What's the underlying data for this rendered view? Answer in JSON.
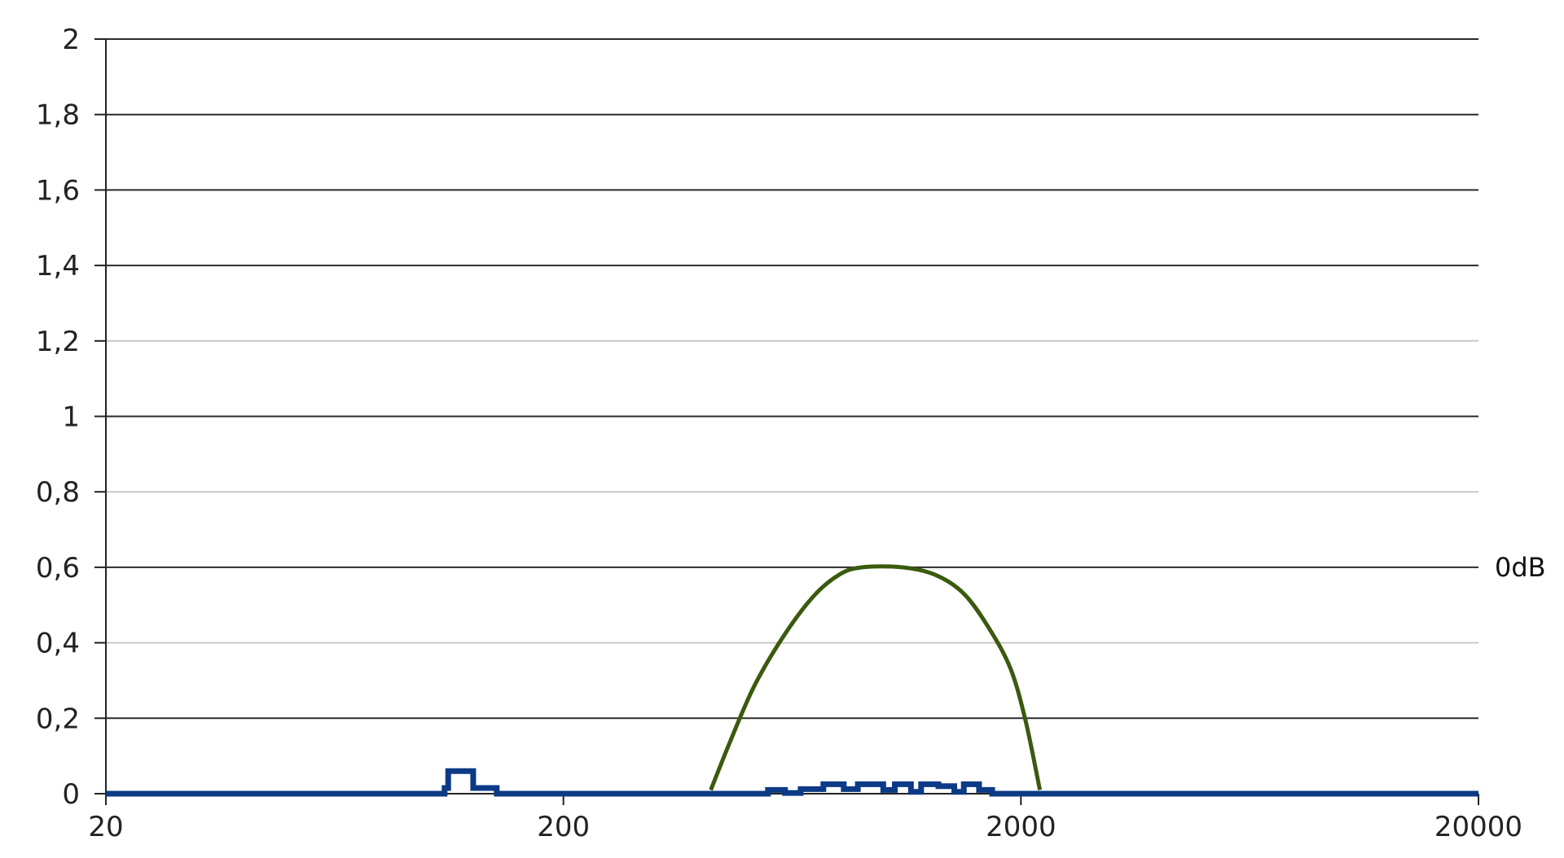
{
  "chart_data": {
    "type": "line",
    "title": "",
    "xlabel": "",
    "ylabel": "",
    "x_scale": "log",
    "xlim": [
      20,
      20000
    ],
    "ylim": [
      0,
      2
    ],
    "grid": true,
    "x_ticks": [
      {
        "value": 20,
        "label": "20"
      },
      {
        "value": 200,
        "label": "200"
      },
      {
        "value": 2000,
        "label": "2000"
      },
      {
        "value": 20000,
        "label": "20000"
      }
    ],
    "y_ticks": [
      {
        "value": 0,
        "label": "0"
      },
      {
        "value": 0.2,
        "label": "0,2"
      },
      {
        "value": 0.4,
        "label": "0,4"
      },
      {
        "value": 0.6,
        "label": "0,6"
      },
      {
        "value": 0.8,
        "label": "0,8"
      },
      {
        "value": 1,
        "label": "1"
      },
      {
        "value": 1.2,
        "label": "1,2"
      },
      {
        "value": 1.4,
        "label": "1,4"
      },
      {
        "value": 1.6,
        "label": "1,6"
      },
      {
        "value": 1.8,
        "label": "1,8"
      },
      {
        "value": 2,
        "label": "2"
      }
    ],
    "minor_gridlines": [
      0.4,
      0.8,
      1.2
    ],
    "reference_label": {
      "y": 0.6,
      "text": "0dB"
    },
    "series": [
      {
        "color": "#0c3a86",
        "step": true,
        "points": [
          [
            20,
            0
          ],
          [
            106,
            0
          ],
          [
            110,
            0.015
          ],
          [
            112,
            0.06
          ],
          [
            125,
            0.06
          ],
          [
            127,
            0.015
          ],
          [
            140,
            0.015
          ],
          [
            143,
            0
          ],
          [
            520,
            0
          ],
          [
            560,
            0.01
          ],
          [
            600,
            0.01
          ],
          [
            610,
            0.002
          ],
          [
            640,
            0.002
          ],
          [
            660,
            0.012
          ],
          [
            720,
            0.012
          ],
          [
            740,
            0.025
          ],
          [
            800,
            0.025
          ],
          [
            820,
            0.012
          ],
          [
            860,
            0.012
          ],
          [
            880,
            0.025
          ],
          [
            960,
            0.025
          ],
          [
            1000,
            0.01
          ],
          [
            1030,
            0.01
          ],
          [
            1060,
            0.025
          ],
          [
            1130,
            0.025
          ],
          [
            1150,
            0.005
          ],
          [
            1190,
            0.005
          ],
          [
            1210,
            0.025
          ],
          [
            1300,
            0.025
          ],
          [
            1320,
            0.02
          ],
          [
            1400,
            0.02
          ],
          [
            1430,
            0.005
          ],
          [
            1480,
            0.005
          ],
          [
            1500,
            0.025
          ],
          [
            1600,
            0.025
          ],
          [
            1620,
            0.01
          ],
          [
            1700,
            0.01
          ],
          [
            1730,
            0
          ],
          [
            20000,
            0
          ]
        ]
      },
      {
        "color": "#3a5a0e",
        "step": false,
        "points": [
          [
            420,
            0.01
          ],
          [
            460,
            0.13
          ],
          [
            520,
            0.28
          ],
          [
            600,
            0.41
          ],
          [
            700,
            0.52
          ],
          [
            800,
            0.58
          ],
          [
            900,
            0.6
          ],
          [
            1100,
            0.6
          ],
          [
            1300,
            0.58
          ],
          [
            1500,
            0.53
          ],
          [
            1700,
            0.44
          ],
          [
            1900,
            0.33
          ],
          [
            2050,
            0.19
          ],
          [
            2200,
            0.01
          ]
        ]
      }
    ]
  }
}
